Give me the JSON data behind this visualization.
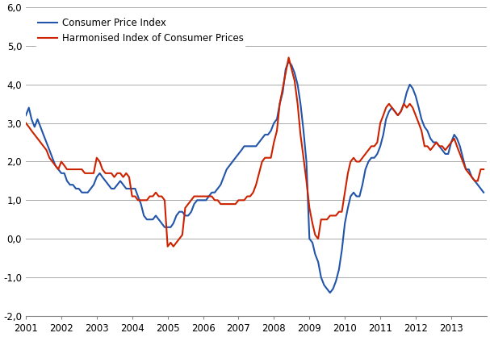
{
  "cpi_color": "#2255AA",
  "hicp_color": "#CC2200",
  "cpi_label": "Consumer Price Index",
  "hicp_label": "Harmonised Index of Consumer Prices",
  "ylim": [
    -2.0,
    6.0
  ],
  "yticks": [
    -2.0,
    -1.0,
    0.0,
    1.0,
    2.0,
    3.0,
    4.0,
    5.0,
    6.0
  ],
  "ytick_labels": [
    "-2,0",
    "-1,0",
    "0,0",
    "1,0",
    "2,0",
    "3,0",
    "4,0",
    "5,0",
    "6,0"
  ],
  "xtick_years": [
    "2001",
    "2002",
    "2003",
    "2004",
    "2005",
    "2006",
    "2007",
    "2008",
    "2009",
    "2010",
    "2011",
    "2012",
    "2013"
  ],
  "bg_color": "#FFFFFF",
  "grid_color": "#AAAAAA",
  "cpi": [
    3.2,
    3.4,
    3.1,
    2.9,
    3.1,
    2.9,
    2.7,
    2.5,
    2.3,
    2.1,
    1.9,
    1.8,
    1.7,
    1.7,
    1.5,
    1.4,
    1.4,
    1.3,
    1.3,
    1.2,
    1.2,
    1.2,
    1.3,
    1.4,
    1.6,
    1.7,
    1.6,
    1.5,
    1.4,
    1.3,
    1.3,
    1.4,
    1.5,
    1.4,
    1.3,
    1.3,
    1.3,
    1.3,
    1.1,
    0.9,
    0.6,
    0.5,
    0.5,
    0.5,
    0.6,
    0.5,
    0.4,
    0.3,
    0.3,
    0.3,
    0.4,
    0.6,
    0.7,
    0.7,
    0.6,
    0.6,
    0.7,
    0.9,
    1.0,
    1.0,
    1.0,
    1.0,
    1.1,
    1.2,
    1.2,
    1.3,
    1.4,
    1.6,
    1.8,
    1.9,
    2.0,
    2.1,
    2.2,
    2.3,
    2.4,
    2.4,
    2.4,
    2.4,
    2.4,
    2.5,
    2.6,
    2.7,
    2.7,
    2.8,
    3.0,
    3.1,
    3.5,
    3.8,
    4.4,
    4.6,
    4.5,
    4.3,
    4.0,
    3.5,
    2.8,
    2.0,
    0.0,
    -0.1,
    -0.4,
    -0.6,
    -1.0,
    -1.2,
    -1.3,
    -1.4,
    -1.3,
    -1.1,
    -0.8,
    -0.3,
    0.4,
    0.8,
    1.1,
    1.2,
    1.1,
    1.1,
    1.4,
    1.8,
    2.0,
    2.1,
    2.1,
    2.2,
    2.4,
    2.7,
    3.1,
    3.3,
    3.4,
    3.3,
    3.2,
    3.3,
    3.5,
    3.8,
    4.0,
    3.9,
    3.7,
    3.4,
    3.1,
    2.9,
    2.8,
    2.6,
    2.5,
    2.5,
    2.4,
    2.3,
    2.2,
    2.2,
    2.5,
    2.7,
    2.6,
    2.4,
    2.1,
    1.8,
    1.8,
    1.6,
    1.5,
    1.4,
    1.3,
    1.2
  ],
  "hicp": [
    3.0,
    2.9,
    2.8,
    2.7,
    2.6,
    2.5,
    2.4,
    2.3,
    2.1,
    2.0,
    1.9,
    1.8,
    2.0,
    1.9,
    1.8,
    1.8,
    1.8,
    1.8,
    1.8,
    1.8,
    1.7,
    1.7,
    1.7,
    1.7,
    2.1,
    2.0,
    1.8,
    1.7,
    1.7,
    1.7,
    1.6,
    1.7,
    1.7,
    1.6,
    1.7,
    1.6,
    1.1,
    1.1,
    1.0,
    1.0,
    1.0,
    1.0,
    1.1,
    1.1,
    1.2,
    1.1,
    1.1,
    1.0,
    -0.2,
    -0.1,
    -0.2,
    -0.1,
    0.0,
    0.1,
    0.8,
    0.9,
    1.0,
    1.1,
    1.1,
    1.1,
    1.1,
    1.1,
    1.1,
    1.1,
    1.0,
    1.0,
    0.9,
    0.9,
    0.9,
    0.9,
    0.9,
    0.9,
    1.0,
    1.0,
    1.0,
    1.1,
    1.1,
    1.2,
    1.4,
    1.7,
    2.0,
    2.1,
    2.1,
    2.1,
    2.5,
    2.8,
    3.5,
    3.9,
    4.3,
    4.7,
    4.4,
    4.1,
    3.5,
    2.7,
    2.1,
    1.5,
    0.8,
    0.4,
    0.1,
    0.0,
    0.5,
    0.5,
    0.5,
    0.6,
    0.6,
    0.6,
    0.7,
    0.7,
    1.2,
    1.7,
    2.0,
    2.1,
    2.0,
    2.0,
    2.1,
    2.2,
    2.3,
    2.4,
    2.4,
    2.5,
    3.0,
    3.2,
    3.4,
    3.5,
    3.4,
    3.3,
    3.2,
    3.3,
    3.5,
    3.4,
    3.5,
    3.4,
    3.2,
    3.0,
    2.8,
    2.4,
    2.4,
    2.3,
    2.4,
    2.5,
    2.4,
    2.4,
    2.3,
    2.4,
    2.5,
    2.6,
    2.4,
    2.2,
    2.0,
    1.8,
    1.7,
    1.6,
    1.5,
    1.5,
    1.8,
    1.8
  ]
}
